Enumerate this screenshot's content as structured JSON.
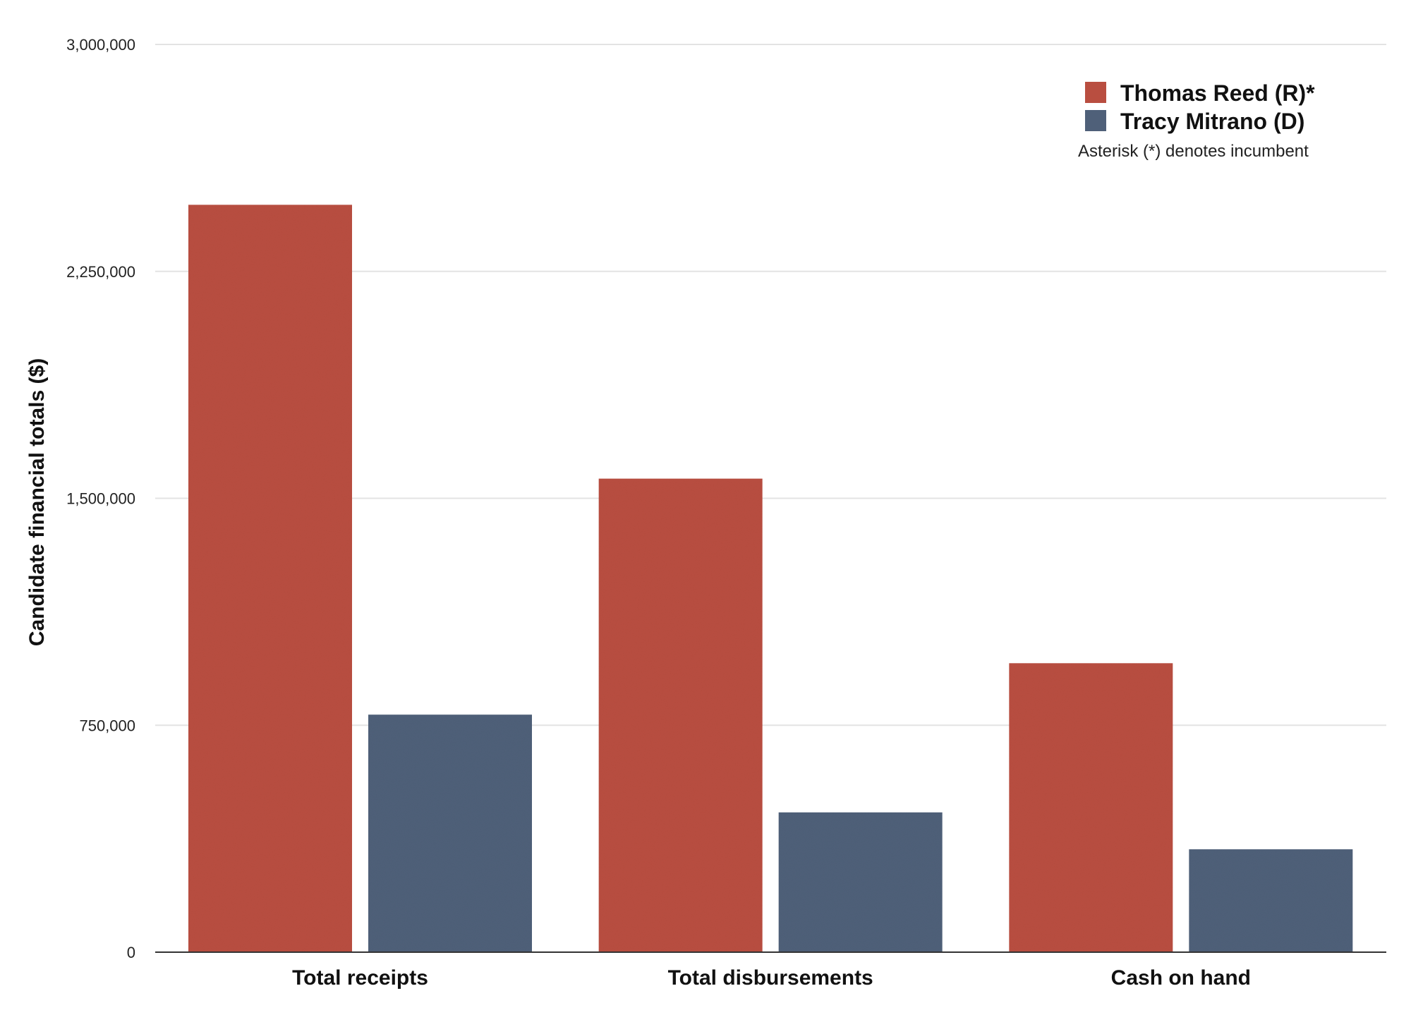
{
  "chart_data": {
    "type": "bar",
    "title": "",
    "xlabel": "",
    "ylabel": "Candidate financial totals ($)",
    "categories": [
      "Total receipts",
      "Total disbursements",
      "Cash on hand"
    ],
    "series": [
      {
        "name": "Thomas Reed (R)*",
        "color": "#b94e40",
        "values": [
          2470000,
          1565000,
          955000
        ]
      },
      {
        "name": "Tracy Mitrano (D)",
        "color": "#4f6079",
        "values": [
          785000,
          462000,
          340000
        ]
      }
    ],
    "ylim": [
      0,
      3000000
    ],
    "yticks": [
      0,
      750000,
      1500000,
      2250000,
      3000000
    ],
    "ytick_labels": [
      "0",
      "750,000",
      "1,500,000",
      "2,250,000",
      "3,000,000"
    ],
    "grid": true,
    "legend_position": "top-right",
    "legend_note": "Asterisk (*) denotes incumbent"
  }
}
